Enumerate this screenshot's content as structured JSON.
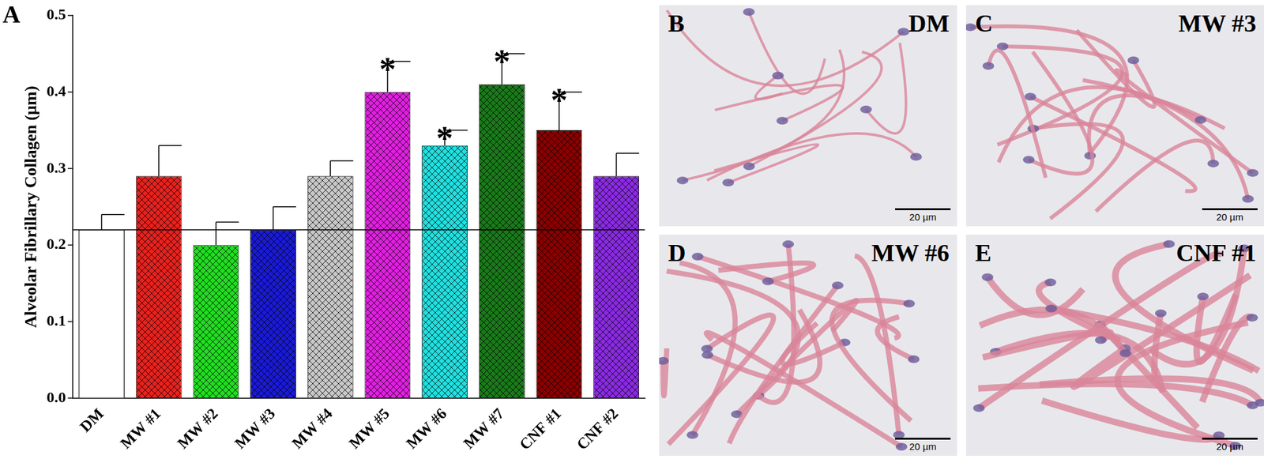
{
  "chart_data": {
    "type": "bar",
    "panel_label": "A",
    "y_label": "Alveolar Fibrillary Collagen (µm)",
    "categories": [
      "DM",
      "MW #1",
      "MW #2",
      "MW #3",
      "MW #4",
      "MW #5",
      "MW #6",
      "MW #7",
      "CNF #1",
      "CNF #2"
    ],
    "values": [
      0.22,
      0.29,
      0.2,
      0.22,
      0.29,
      0.4,
      0.33,
      0.41,
      0.35,
      0.29
    ],
    "errors": [
      0.02,
      0.04,
      0.03,
      0.03,
      0.02,
      0.04,
      0.02,
      0.04,
      0.05,
      0.03
    ],
    "colors": [
      "#ffffff",
      "#e8221e",
      "#22dd22",
      "#1a1ad6",
      "#c8c8c8",
      "#e020e0",
      "#22e0e0",
      "#1a7a1a",
      "#8b0000",
      "#8a2be2"
    ],
    "ylim": [
      0,
      0.5
    ],
    "yticks": [
      {
        "value": 0,
        "label": "0.0"
      },
      0.1,
      0.2,
      0.3,
      0.4,
      0.5
    ],
    "grid": false,
    "reference_line": 0.22,
    "annotations": [
      {
        "category": "MW #5",
        "text": "*"
      },
      {
        "category": "MW #6",
        "text": "*"
      },
      {
        "category": "MW #7",
        "text": "*"
      },
      {
        "category": "CNF #1",
        "text": "*"
      }
    ]
  },
  "panels": [
    {
      "letter": "B",
      "label": "DM",
      "scale_bar": "20 µm"
    },
    {
      "letter": "C",
      "label": "MW #3",
      "scale_bar": "20 µm"
    },
    {
      "letter": "D",
      "label": "MW #6",
      "scale_bar": "20 µm"
    },
    {
      "letter": "E",
      "label": "CNF #1",
      "scale_bar": "20 µm"
    }
  ]
}
